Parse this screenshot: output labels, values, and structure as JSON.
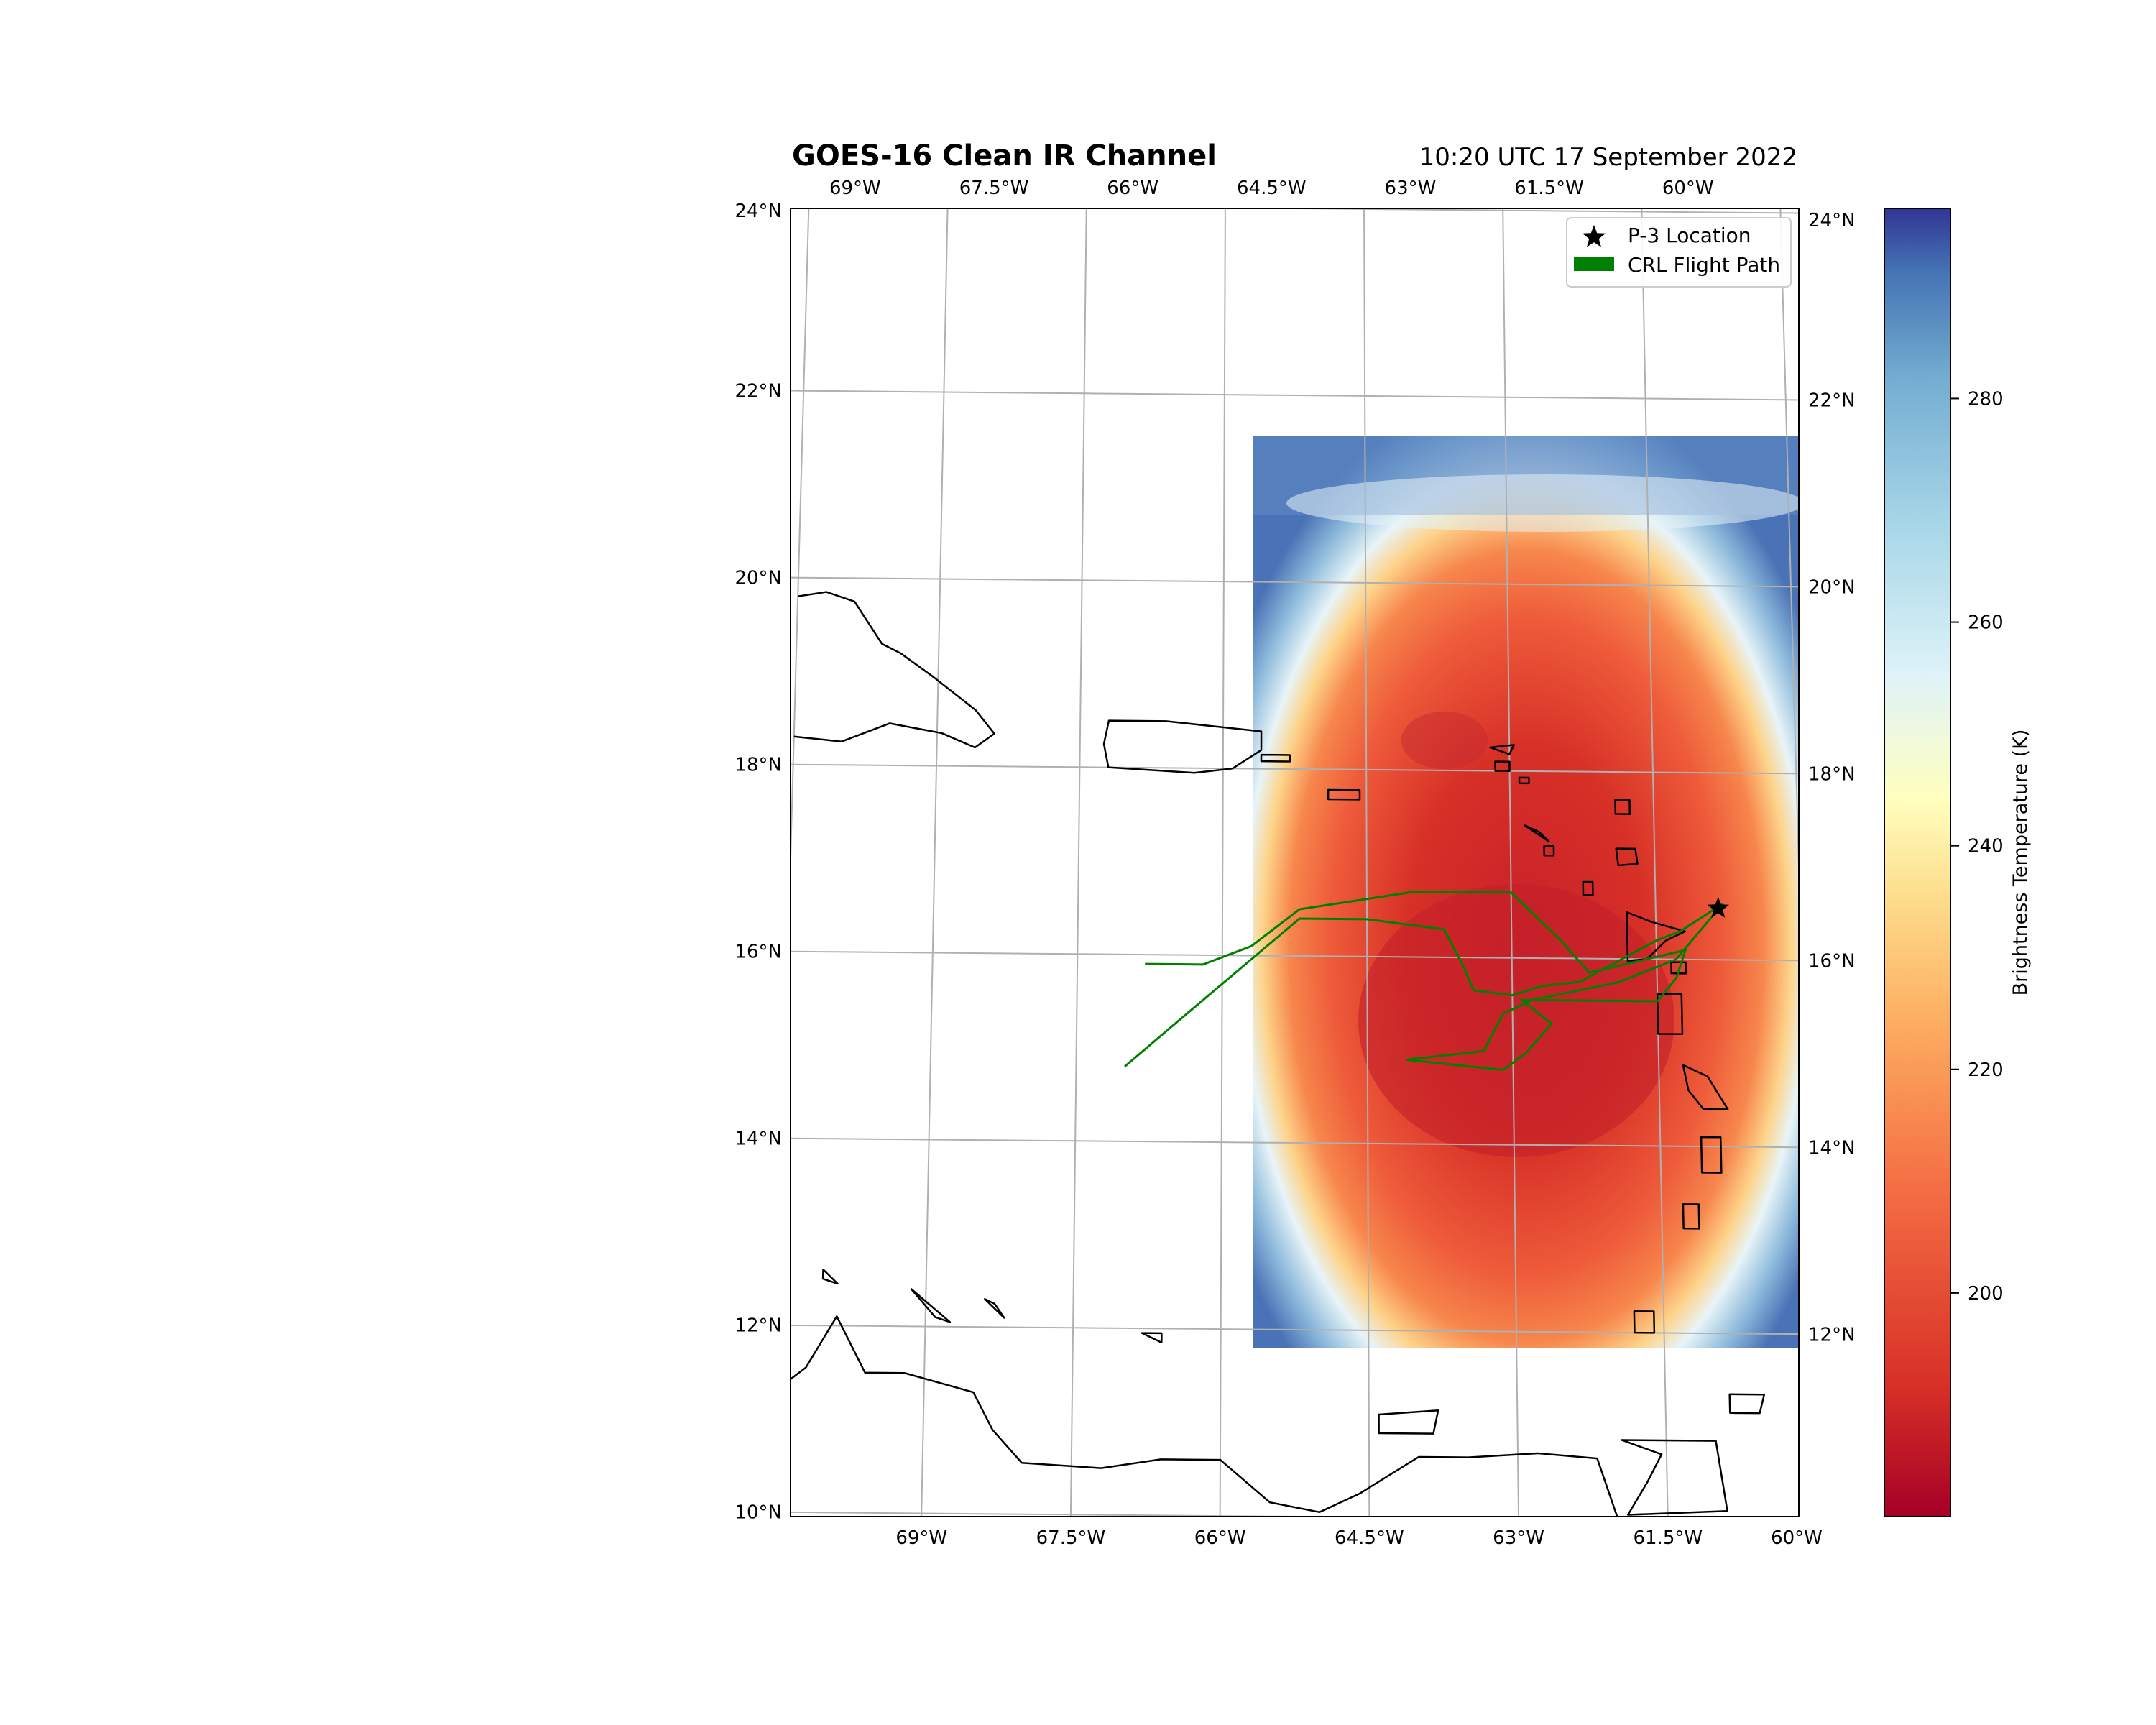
{
  "title": "GOES-16 Clean IR Channel",
  "subtitle": "10:20 UTC 17 September 2022",
  "colors": {
    "flight_path": "#008000",
    "coastline": "#000000",
    "grid": "#b0b0b0",
    "marker": "#000000"
  },
  "legend": {
    "placement": "top-right",
    "items": [
      {
        "label": "P-3 Location",
        "icon": "star-marker-icon"
      },
      {
        "label": "CRL Flight Path",
        "icon": "green-patch-icon"
      }
    ]
  },
  "colorbar": {
    "label": "Brightness Temperature (K)",
    "ticks": [
      "200",
      "220",
      "240",
      "260",
      "280"
    ],
    "colormap": "RdYlBu"
  },
  "axes": {
    "lat_left": [
      "24°N",
      "22°N",
      "20°N",
      "18°N",
      "16°N",
      "14°N",
      "12°N",
      "10°N"
    ],
    "lat_right": [
      "24°N",
      "22°N",
      "20°N",
      "18°N",
      "16°N",
      "14°N",
      "12°N"
    ],
    "lon_top": [
      "69°W",
      "67.5°W",
      "66°W",
      "64.5°W",
      "63°W",
      "61.5°W",
      "60°W"
    ],
    "lon_bottom": [
      "69°W",
      "67.5°W",
      "66°W",
      "64.5°W",
      "63°W",
      "61.5°W",
      "60°W"
    ]
  },
  "map_extent": {
    "lon": [
      -70.5,
      -60
    ],
    "lat": [
      10,
      24
    ]
  },
  "satellite_extent": {
    "lon": [
      -65.7,
      -60
    ],
    "lat": [
      11.8,
      21.4
    ]
  },
  "p3_location": {
    "lon": -60.85,
    "lat": 16.55
  },
  "flight_path": [
    [
      -67.0,
      14.8
    ],
    [
      -66.5,
      15.25
    ],
    [
      -65.2,
      16.4
    ],
    [
      -64.5,
      16.4
    ],
    [
      -63.7,
      16.3
    ],
    [
      -63.5,
      15.9
    ],
    [
      -63.4,
      15.65
    ],
    [
      -63.0,
      15.6
    ],
    [
      -62.7,
      15.7
    ],
    [
      -62.3,
      15.75
    ],
    [
      -61.5,
      16.2
    ],
    [
      -61.25,
      16.3
    ],
    [
      -60.8,
      16.6
    ],
    [
      -61.3,
      16.0
    ],
    [
      -61.9,
      15.75
    ],
    [
      -62.8,
      15.55
    ],
    [
      -63.1,
      15.4
    ],
    [
      -63.3,
      15.0
    ],
    [
      -64.1,
      14.9
    ],
    [
      -63.1,
      14.8
    ],
    [
      -62.85,
      15.0
    ],
    [
      -62.6,
      15.3
    ],
    [
      -62.9,
      15.55
    ],
    [
      -62.0,
      15.55
    ],
    [
      -61.5,
      15.55
    ],
    [
      -61.3,
      15.8
    ],
    [
      -61.2,
      16.1
    ],
    [
      -62.2,
      15.85
    ],
    [
      -62.5,
      16.2
    ],
    [
      -63.0,
      16.7
    ],
    [
      -64.0,
      16.7
    ],
    [
      -65.2,
      16.5
    ],
    [
      -65.7,
      16.1
    ],
    [
      -66.2,
      15.9
    ],
    [
      -66.8,
      15.9
    ]
  ],
  "islands": [
    {
      "name": "puerto-rico",
      "coords": [
        [
          -67.2,
          18.5
        ],
        [
          -66.6,
          18.5
        ],
        [
          -65.6,
          18.4
        ],
        [
          -65.6,
          18.2
        ],
        [
          -65.9,
          18.0
        ],
        [
          -66.3,
          17.95
        ],
        [
          -67.2,
          18.0
        ],
        [
          -67.25,
          18.25
        ]
      ]
    },
    {
      "name": "vieques",
      "coords": [
        [
          -65.6,
          18.15
        ],
        [
          -65.3,
          18.15
        ],
        [
          -65.3,
          18.08
        ],
        [
          -65.6,
          18.08
        ]
      ]
    },
    {
      "name": "st-croix",
      "coords": [
        [
          -64.9,
          17.78
        ],
        [
          -64.57,
          17.78
        ],
        [
          -64.57,
          17.68
        ],
        [
          -64.9,
          17.68
        ]
      ]
    },
    {
      "name": "anguilla",
      "coords": [
        [
          -63.2,
          18.25
        ],
        [
          -62.95,
          18.28
        ],
        [
          -63.0,
          18.18
        ]
      ]
    },
    {
      "name": "st-martin",
      "coords": [
        [
          -63.15,
          18.1
        ],
        [
          -63.0,
          18.1
        ],
        [
          -63.0,
          18.0
        ],
        [
          -63.15,
          18.0
        ]
      ]
    },
    {
      "name": "st-barths",
      "coords": [
        [
          -62.9,
          17.93
        ],
        [
          -62.8,
          17.93
        ],
        [
          -62.8,
          17.87
        ],
        [
          -62.9,
          17.87
        ]
      ]
    },
    {
      "name": "barbuda",
      "coords": [
        [
          -61.9,
          17.7
        ],
        [
          -61.75,
          17.7
        ],
        [
          -61.75,
          17.55
        ],
        [
          -61.9,
          17.55
        ]
      ]
    },
    {
      "name": "antigua",
      "coords": [
        [
          -61.9,
          17.18
        ],
        [
          -61.7,
          17.18
        ],
        [
          -61.68,
          17.02
        ],
        [
          -61.88,
          17.0
        ]
      ]
    },
    {
      "name": "st-kitts",
      "coords": [
        [
          -62.85,
          17.42
        ],
        [
          -62.6,
          17.25
        ],
        [
          -62.7,
          17.35
        ]
      ]
    },
    {
      "name": "nevis",
      "coords": [
        [
          -62.65,
          17.2
        ],
        [
          -62.55,
          17.2
        ],
        [
          -62.55,
          17.1
        ],
        [
          -62.65,
          17.1
        ]
      ]
    },
    {
      "name": "montserrat",
      "coords": [
        [
          -62.25,
          16.82
        ],
        [
          -62.15,
          16.82
        ],
        [
          -62.15,
          16.68
        ],
        [
          -62.25,
          16.68
        ]
      ]
    },
    {
      "name": "guadeloupe",
      "coords": [
        [
          -61.8,
          16.5
        ],
        [
          -61.55,
          16.4
        ],
        [
          -61.2,
          16.3
        ],
        [
          -61.4,
          16.2
        ],
        [
          -61.6,
          16.0
        ],
        [
          -61.8,
          15.98
        ],
        [
          -61.8,
          16.3
        ]
      ]
    },
    {
      "name": "marie-galante",
      "coords": [
        [
          -61.35,
          15.97
        ],
        [
          -61.2,
          15.97
        ],
        [
          -61.2,
          15.85
        ],
        [
          -61.35,
          15.85
        ]
      ]
    },
    {
      "name": "dominica",
      "coords": [
        [
          -61.5,
          15.63
        ],
        [
          -61.25,
          15.63
        ],
        [
          -61.25,
          15.2
        ],
        [
          -61.5,
          15.2
        ]
      ]
    },
    {
      "name": "martinique",
      "coords": [
        [
          -61.25,
          14.87
        ],
        [
          -61.0,
          14.75
        ],
        [
          -60.8,
          14.4
        ],
        [
          -61.05,
          14.4
        ],
        [
          -61.2,
          14.6
        ]
      ]
    },
    {
      "name": "st-lucia",
      "coords": [
        [
          -61.08,
          14.1
        ],
        [
          -60.88,
          14.1
        ],
        [
          -60.88,
          13.72
        ],
        [
          -61.08,
          13.72
        ]
      ]
    },
    {
      "name": "st-vincent",
      "coords": [
        [
          -61.28,
          13.38
        ],
        [
          -61.12,
          13.38
        ],
        [
          -61.12,
          13.12
        ],
        [
          -61.28,
          13.12
        ]
      ]
    },
    {
      "name": "barbados",
      "coords": [
        [
          -59.65,
          13.33
        ],
        [
          -59.42,
          13.2
        ],
        [
          -59.55,
          13.05
        ]
      ]
    },
    {
      "name": "grenada",
      "coords": [
        [
          -61.8,
          12.23
        ],
        [
          -61.6,
          12.23
        ],
        [
          -61.6,
          12.0
        ],
        [
          -61.8,
          12.0
        ]
      ]
    },
    {
      "name": "tobago",
      "coords": [
        [
          -60.85,
          11.35
        ],
        [
          -60.5,
          11.35
        ],
        [
          -60.55,
          11.15
        ],
        [
          -60.85,
          11.15
        ]
      ]
    },
    {
      "name": "trinidad",
      "coords": [
        [
          -61.95,
          10.85
        ],
        [
          -61.0,
          10.85
        ],
        [
          -60.9,
          10.1
        ],
        [
          -61.9,
          10.05
        ],
        [
          -61.7,
          10.4
        ],
        [
          -61.55,
          10.7
        ]
      ]
    },
    {
      "name": "margarita",
      "coords": [
        [
          -64.4,
          11.1
        ],
        [
          -63.8,
          11.15
        ],
        [
          -63.85,
          10.9
        ],
        [
          -64.4,
          10.9
        ]
      ]
    },
    {
      "name": "aruba",
      "coords": [
        [
          -70.05,
          12.6
        ],
        [
          -69.9,
          12.45
        ],
        [
          -70.05,
          12.5
        ]
      ]
    },
    {
      "name": "curacao",
      "coords": [
        [
          -69.15,
          12.4
        ],
        [
          -68.75,
          12.05
        ],
        [
          -68.9,
          12.1
        ]
      ]
    },
    {
      "name": "bonaire",
      "coords": [
        [
          -68.4,
          12.3
        ],
        [
          -68.2,
          12.1
        ],
        [
          -68.3,
          12.25
        ]
      ]
    },
    {
      "name": "los-roques",
      "coords": [
        [
          -66.8,
          11.95
        ],
        [
          -66.6,
          11.95
        ],
        [
          -66.6,
          11.85
        ]
      ]
    }
  ],
  "hispaniola": [
    [
      -70.5,
      19.8
    ],
    [
      -70.2,
      19.85
    ],
    [
      -69.9,
      19.75
    ],
    [
      -69.6,
      19.3
    ],
    [
      -69.4,
      19.2
    ],
    [
      -69.05,
      18.95
    ],
    [
      -68.6,
      18.6
    ],
    [
      -68.4,
      18.35
    ],
    [
      -68.6,
      18.2
    ],
    [
      -68.95,
      18.35
    ],
    [
      -69.5,
      18.45
    ],
    [
      -70.0,
      18.25
    ],
    [
      -70.5,
      18.3
    ]
  ],
  "venezuela": [
    [
      -70.5,
      11.3
    ],
    [
      -70.2,
      11.55
    ],
    [
      -69.9,
      12.1
    ],
    [
      -69.6,
      11.5
    ],
    [
      -69.2,
      11.5
    ],
    [
      -68.5,
      11.3
    ],
    [
      -68.3,
      10.9
    ],
    [
      -68.0,
      10.55
    ],
    [
      -67.2,
      10.5
    ],
    [
      -66.6,
      10.6
    ],
    [
      -66.0,
      10.6
    ],
    [
      -65.5,
      10.15
    ],
    [
      -65.0,
      10.05
    ],
    [
      -64.6,
      10.25
    ],
    [
      -64.0,
      10.65
    ],
    [
      -63.5,
      10.65
    ],
    [
      -62.8,
      10.7
    ],
    [
      -62.2,
      10.65
    ],
    [
      -62.0,
      10.0
    ],
    [
      -61.9,
      10.0
    ]
  ]
}
